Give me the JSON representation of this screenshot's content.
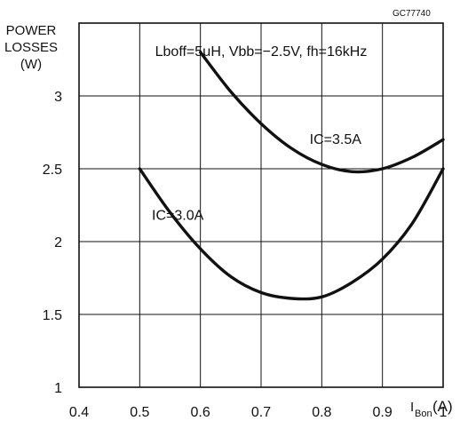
{
  "reference_code": "GC77740",
  "chart_data": {
    "type": "line",
    "title": "",
    "ylabel_lines": [
      "POWER",
      "LOSSES",
      "(W)"
    ],
    "xlabel": {
      "symbol": "I",
      "subscript": "Bon",
      "unit": "(A)"
    },
    "conditions": "Lboff=5μH,  Vbb=−2.5V,  fh=16kHz",
    "xlim": [
      0.4,
      1.0
    ],
    "ylim": [
      1,
      3.5
    ],
    "xticks": [
      "0.4",
      "0.5",
      "0.6",
      "0.7",
      "0.8",
      "0.9",
      "1"
    ],
    "yticks": [
      "1",
      "1.5",
      "2",
      "2.5",
      "3"
    ],
    "grid": true,
    "series": [
      {
        "name": "IC=3.5A",
        "x": [
          0.6,
          0.65,
          0.7,
          0.75,
          0.8,
          0.85,
          0.9,
          0.95,
          1.0
        ],
        "y": [
          3.3,
          3.03,
          2.81,
          2.64,
          2.53,
          2.48,
          2.5,
          2.58,
          2.7
        ]
      },
      {
        "name": "IC=3.0A",
        "x": [
          0.5,
          0.55,
          0.6,
          0.65,
          0.7,
          0.75,
          0.8,
          0.85,
          0.9,
          0.95,
          1.0
        ],
        "y": [
          2.5,
          2.2,
          1.95,
          1.76,
          1.65,
          1.61,
          1.62,
          1.72,
          1.88,
          2.13,
          2.5
        ]
      }
    ]
  }
}
